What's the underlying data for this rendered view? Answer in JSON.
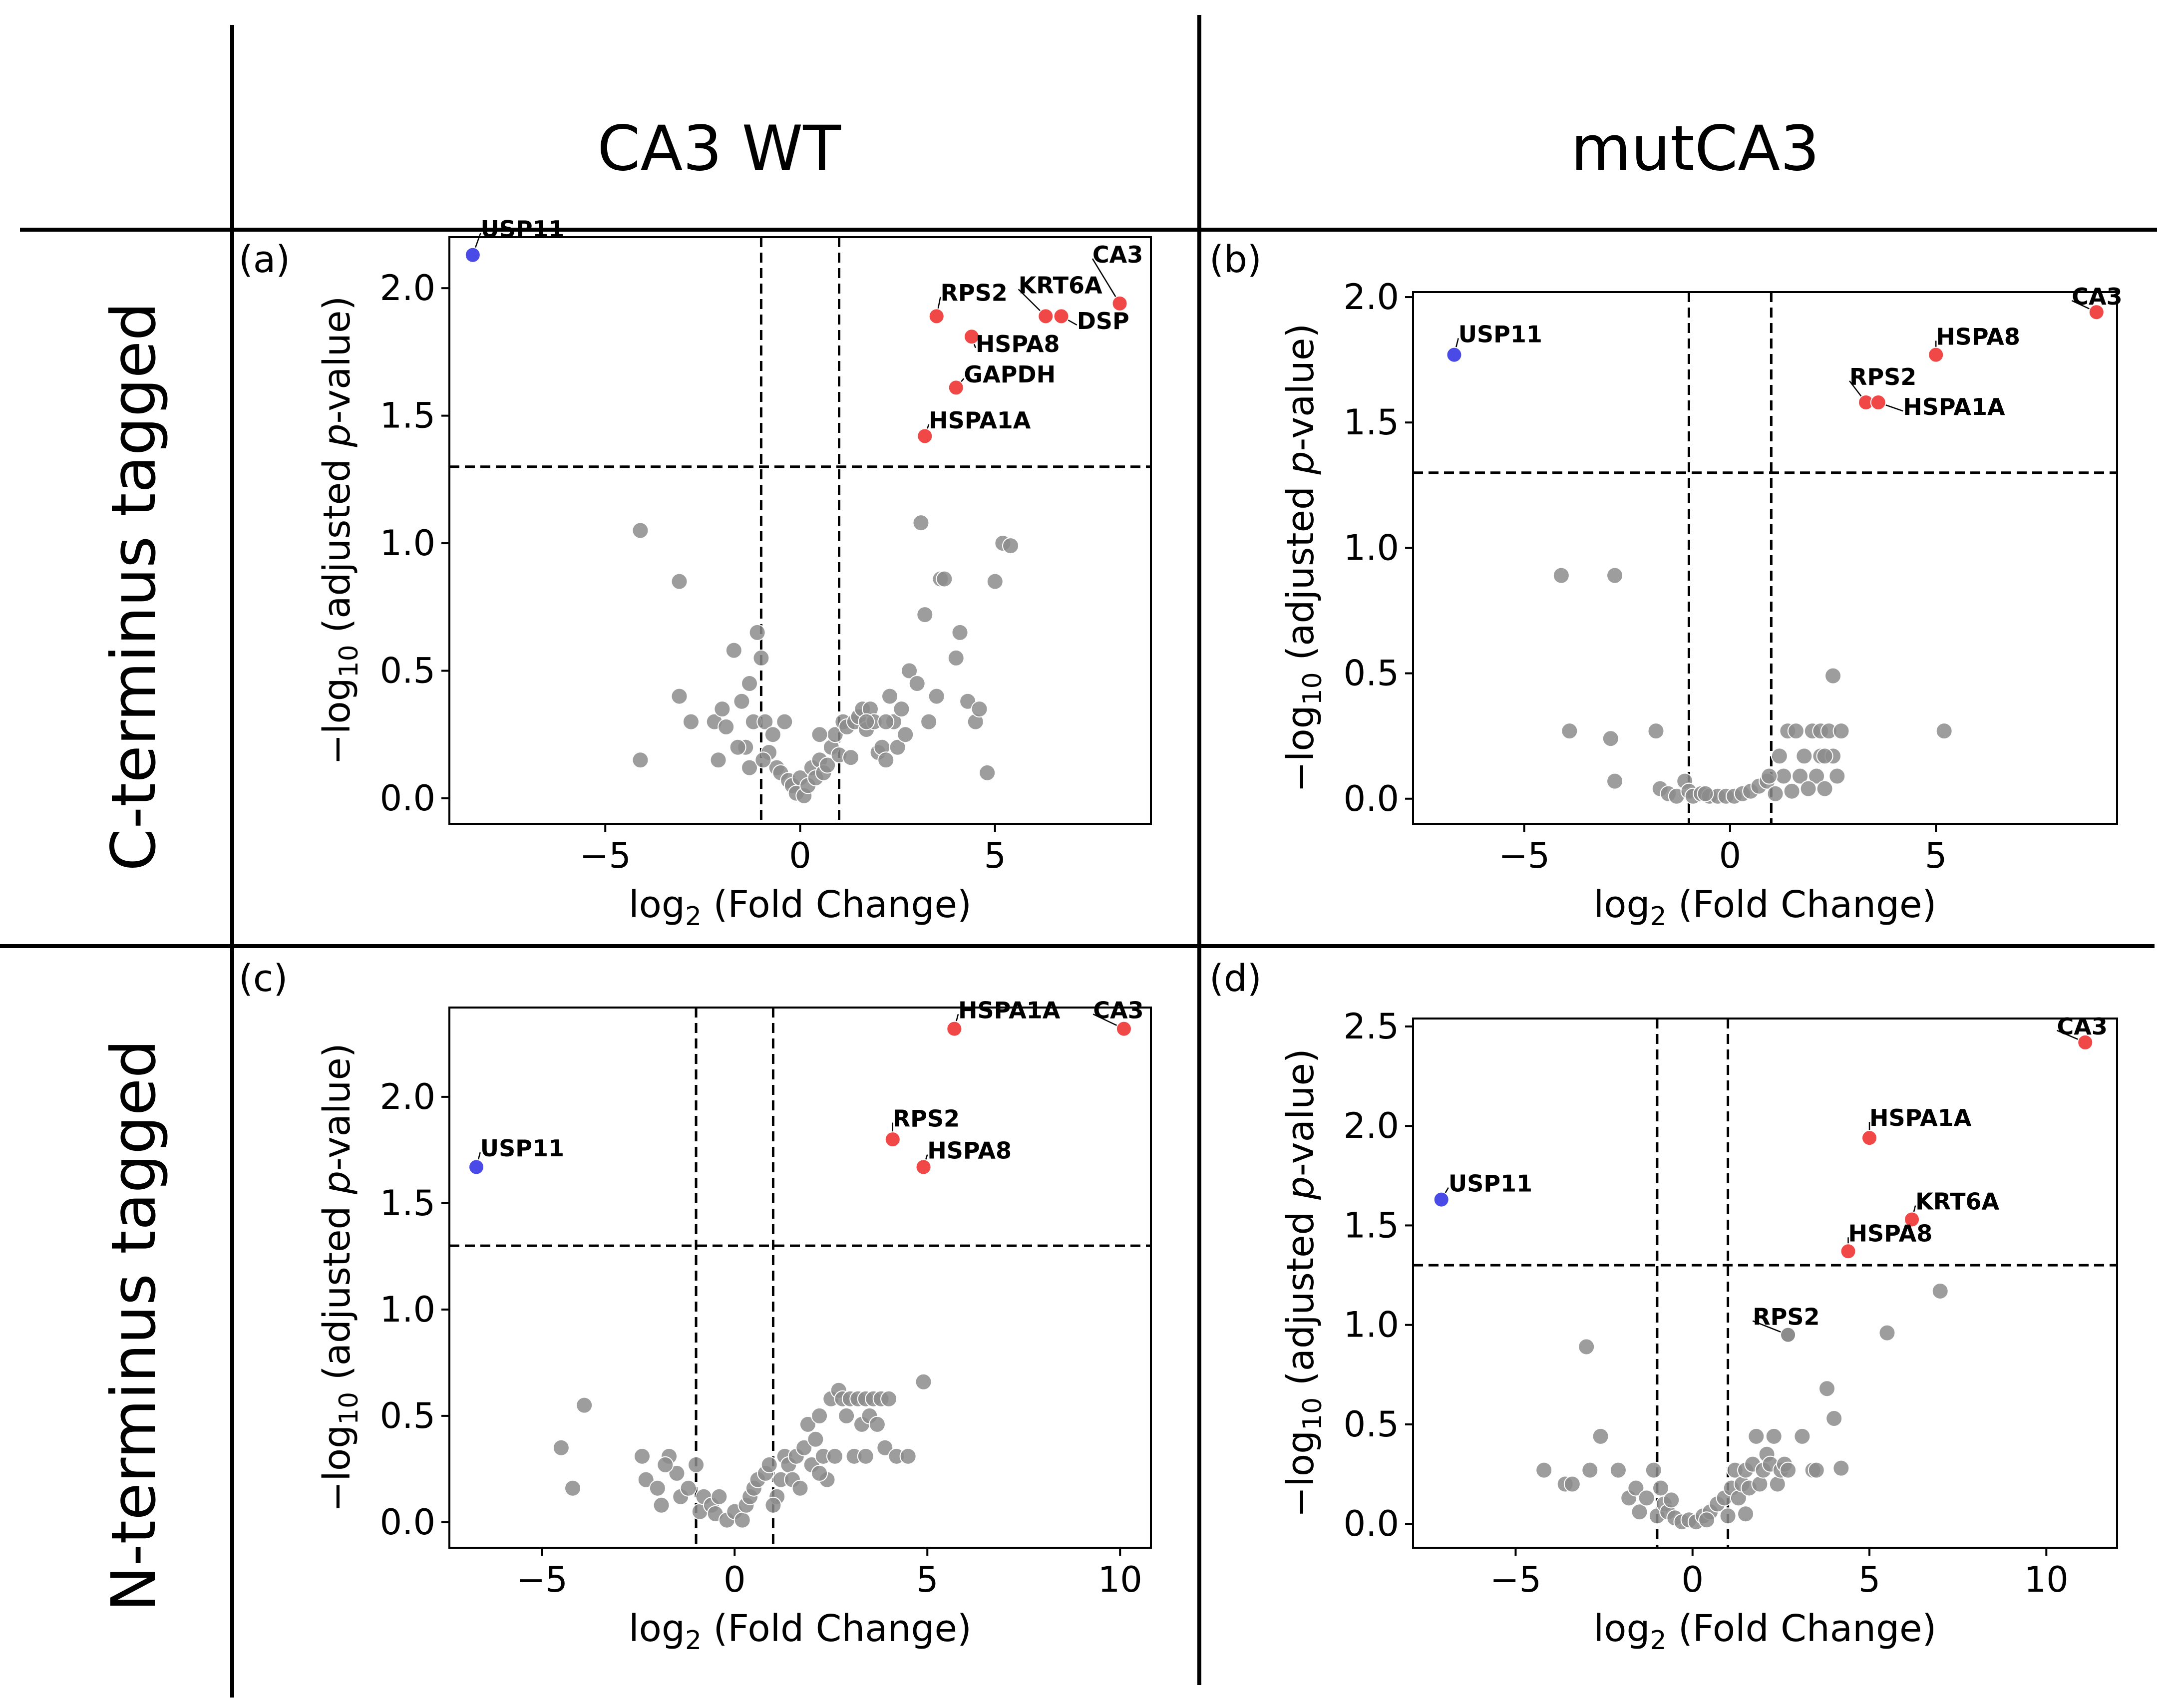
{
  "header": {
    "columns": [
      "CA3 WT",
      "mutCA3"
    ],
    "rows": [
      "C-terminus tagged",
      "N-terminus tagged"
    ]
  },
  "colors": {
    "up": "#f04747",
    "down": "#4a4ae6",
    "ns": "#8c8c8c",
    "ns_edge": "#ffffff"
  },
  "chart_data": [
    {
      "type": "scatter",
      "panel": "(a)",
      "xlabel_main": "log",
      "xlabel_sub": "2",
      "xlabel_rest": " (Fold Change)",
      "ylabel_pre": "−log",
      "ylabel_sub": "10",
      "ylabel_mid": " (adjusted ",
      "ylabel_italic": "p",
      "ylabel_post": "-value)",
      "xlim": [
        -9,
        9
      ],
      "ylim": [
        -0.1,
        2.2
      ],
      "xticks": [
        -5,
        0,
        5
      ],
      "xtick_labels": [
        "−5",
        "0",
        "5"
      ],
      "yticks": [
        0,
        0.5,
        1,
        1.5,
        2
      ],
      "ytick_labels": [
        "0.0",
        "0.5",
        "1.0",
        "1.5",
        "2.0"
      ],
      "thresholds": {
        "x": [
          -1,
          1
        ],
        "y": 1.3
      },
      "highlight": [
        {
          "label": "USP11",
          "x": -8.4,
          "y": 2.13,
          "group": "down",
          "lx": -8.2,
          "ly": 2.2
        },
        {
          "label": "CA3",
          "x": 8.2,
          "y": 1.94,
          "group": "up",
          "lx": 7.5,
          "ly": 2.1
        },
        {
          "label": "RPS2",
          "x": 3.5,
          "y": 1.89,
          "group": "up",
          "lx": 3.6,
          "ly": 1.95
        },
        {
          "label": "KRT6A",
          "x": 6.3,
          "y": 1.89,
          "group": "up",
          "lx": 5.6,
          "ly": 1.98
        },
        {
          "label": "DSP",
          "x": 6.7,
          "y": 1.89,
          "group": "up",
          "lx": 7.1,
          "ly": 1.84
        },
        {
          "label": "HSPA8",
          "x": 4.4,
          "y": 1.81,
          "group": "up",
          "lx": 4.5,
          "ly": 1.75
        },
        {
          "label": "GAPDH",
          "x": 4.0,
          "y": 1.61,
          "group": "up",
          "lx": 4.2,
          "ly": 1.63
        },
        {
          "label": "HSPA1A",
          "x": 3.2,
          "y": 1.42,
          "group": "up",
          "lx": 3.3,
          "ly": 1.45
        }
      ],
      "points": [
        [
          -4.1,
          1.05
        ],
        [
          -4.1,
          0.15
        ],
        [
          -3.1,
          0.85
        ],
        [
          -3.1,
          0.4
        ],
        [
          -2.8,
          0.3
        ],
        [
          -2.2,
          0.3
        ],
        [
          -2.1,
          0.15
        ],
        [
          -2.0,
          0.35
        ],
        [
          -1.7,
          0.58
        ],
        [
          -1.5,
          0.38
        ],
        [
          -1.4,
          0.2
        ],
        [
          -1.3,
          0.45
        ],
        [
          -1.2,
          0.3
        ],
        [
          -1.1,
          0.65
        ],
        [
          -1.3,
          0.12
        ],
        [
          -1.0,
          0.55
        ],
        [
          -0.9,
          0.3
        ],
        [
          -0.8,
          0.18
        ],
        [
          -0.7,
          0.25
        ],
        [
          -0.6,
          0.12
        ],
        [
          -0.5,
          0.1
        ],
        [
          -0.4,
          0.3
        ],
        [
          -0.3,
          0.07
        ],
        [
          -0.2,
          0.05
        ],
        [
          -0.1,
          0.02
        ],
        [
          0.0,
          0.08
        ],
        [
          0.1,
          0.01
        ],
        [
          0.2,
          0.05
        ],
        [
          0.3,
          0.12
        ],
        [
          0.4,
          0.08
        ],
        [
          0.5,
          0.15
        ],
        [
          0.6,
          0.1
        ],
        [
          0.7,
          0.13
        ],
        [
          0.8,
          0.2
        ],
        [
          0.9,
          0.25
        ],
        [
          1.0,
          0.17
        ],
        [
          1.1,
          0.3
        ],
        [
          1.2,
          0.28
        ],
        [
          1.3,
          0.16
        ],
        [
          1.4,
          0.3
        ],
        [
          1.5,
          0.32
        ],
        [
          1.6,
          0.35
        ],
        [
          1.7,
          0.27
        ],
        [
          1.8,
          0.35
        ],
        [
          1.9,
          0.3
        ],
        [
          2.0,
          0.18
        ],
        [
          2.1,
          0.2
        ],
        [
          2.2,
          0.15
        ],
        [
          2.3,
          0.4
        ],
        [
          2.4,
          0.3
        ],
        [
          2.5,
          0.2
        ],
        [
          2.6,
          0.35
        ],
        [
          2.7,
          0.25
        ],
        [
          2.8,
          0.5
        ],
        [
          3.0,
          0.45
        ],
        [
          3.1,
          1.08
        ],
        [
          3.2,
          0.72
        ],
        [
          3.3,
          0.3
        ],
        [
          3.5,
          0.4
        ],
        [
          3.6,
          0.86
        ],
        [
          3.7,
          0.86
        ],
        [
          4.0,
          0.55
        ],
        [
          4.1,
          0.65
        ],
        [
          4.3,
          0.38
        ],
        [
          4.5,
          0.3
        ],
        [
          4.6,
          0.35
        ],
        [
          4.8,
          0.1
        ],
        [
          5.0,
          0.85
        ],
        [
          5.2,
          1.0
        ],
        [
          5.4,
          0.99
        ],
        [
          -1.6,
          0.2
        ],
        [
          -1.9,
          0.28
        ],
        [
          -0.95,
          0.15
        ],
        [
          1.7,
          0.3
        ],
        [
          2.2,
          0.3
        ],
        [
          0.5,
          0.25
        ]
      ]
    },
    {
      "type": "scatter",
      "panel": "(b)",
      "xlabel_main": "log",
      "xlabel_sub": "2",
      "xlabel_rest": " (Fold Change)",
      "ylabel_pre": "−log",
      "ylabel_sub": "10",
      "ylabel_mid": " (adjusted ",
      "ylabel_italic": "p",
      "ylabel_post": "-value)",
      "xlim": [
        -7.7,
        9.4
      ],
      "ylim": [
        -0.1,
        2.02
      ],
      "xticks": [
        -5,
        0,
        5
      ],
      "xtick_labels": [
        "−5",
        "0",
        "5"
      ],
      "yticks": [
        0,
        0.5,
        1,
        1.5,
        2
      ],
      "ytick_labels": [
        "0.0",
        "0.5",
        "1.0",
        "1.5",
        "2.0"
      ],
      "thresholds": {
        "x": [
          -1,
          1
        ],
        "y": 1.3
      },
      "highlight": [
        {
          "label": "USP11",
          "x": -6.7,
          "y": 1.77,
          "group": "down",
          "lx": -6.6,
          "ly": 1.82
        },
        {
          "label": "CA3",
          "x": 8.9,
          "y": 1.94,
          "group": "up",
          "lx": 8.3,
          "ly": 1.97
        },
        {
          "label": "HSPA8",
          "x": 5.0,
          "y": 1.77,
          "group": "up",
          "lx": 5.0,
          "ly": 1.81
        },
        {
          "label": "RPS2",
          "x": 3.3,
          "y": 1.58,
          "group": "up",
          "lx": 2.9,
          "ly": 1.65
        },
        {
          "label": "HSPA1A",
          "x": 3.6,
          "y": 1.58,
          "group": "up",
          "lx": 4.2,
          "ly": 1.53
        }
      ],
      "points": [
        [
          -4.1,
          0.89
        ],
        [
          -3.9,
          0.27
        ],
        [
          -2.9,
          0.24
        ],
        [
          -2.8,
          0.89
        ],
        [
          -2.8,
          0.07
        ],
        [
          -1.8,
          0.27
        ],
        [
          -1.7,
          0.04
        ],
        [
          -1.5,
          0.02
        ],
        [
          -1.3,
          0.01
        ],
        [
          -1.1,
          0.07
        ],
        [
          -1.0,
          0.03
        ],
        [
          -0.9,
          0.01
        ],
        [
          -0.7,
          0.02
        ],
        [
          -0.5,
          0.01
        ],
        [
          -0.3,
          0.01
        ],
        [
          -0.1,
          0.01
        ],
        [
          0.1,
          0.01
        ],
        [
          0.3,
          0.02
        ],
        [
          0.5,
          0.03
        ],
        [
          0.7,
          0.05
        ],
        [
          0.9,
          0.07
        ],
        [
          1.1,
          0.02
        ],
        [
          1.2,
          0.17
        ],
        [
          1.4,
          0.27
        ],
        [
          1.5,
          0.03
        ],
        [
          1.6,
          0.27
        ],
        [
          1.7,
          0.09
        ],
        [
          1.8,
          0.17
        ],
        [
          2.0,
          0.27
        ],
        [
          2.1,
          0.09
        ],
        [
          2.2,
          0.27
        ],
        [
          2.2,
          0.17
        ],
        [
          2.3,
          0.04
        ],
        [
          2.4,
          0.27
        ],
        [
          2.5,
          0.17
        ],
        [
          2.5,
          0.49
        ],
        [
          2.6,
          0.09
        ],
        [
          2.7,
          0.27
        ],
        [
          5.2,
          0.27
        ],
        [
          1.3,
          0.09
        ],
        [
          1.9,
          0.04
        ],
        [
          2.3,
          0.17
        ],
        [
          0.95,
          0.09
        ],
        [
          -0.6,
          0.02
        ]
      ]
    },
    {
      "type": "scatter",
      "panel": "(c)",
      "xlabel_main": "log",
      "xlabel_sub": "2",
      "xlabel_rest": " (Fold Change)",
      "ylabel_pre": "−log",
      "ylabel_sub": "10",
      "ylabel_mid": " (adjusted ",
      "ylabel_italic": "p",
      "ylabel_post": "-value)",
      "xlim": [
        -7.4,
        10.8
      ],
      "ylim": [
        -0.12,
        2.42
      ],
      "xticks": [
        -5,
        0,
        5,
        10
      ],
      "xtick_labels": [
        "−5",
        "0",
        "5",
        "10"
      ],
      "yticks": [
        0,
        0.5,
        1,
        1.5,
        2
      ],
      "ytick_labels": [
        "0.0",
        "0.5",
        "1.0",
        "1.5",
        "2.0"
      ],
      "thresholds": {
        "x": [
          -1,
          1
        ],
        "y": 1.3
      },
      "highlight": [
        {
          "label": "USP11",
          "x": -6.7,
          "y": 1.67,
          "group": "down",
          "lx": -6.6,
          "ly": 1.72
        },
        {
          "label": "HSPA1A",
          "x": 5.7,
          "y": 2.32,
          "group": "up",
          "lx": 5.8,
          "ly": 2.37
        },
        {
          "label": "CA3",
          "x": 10.1,
          "y": 2.32,
          "group": "up",
          "lx": 9.3,
          "ly": 2.37
        },
        {
          "label": "RPS2",
          "x": 4.1,
          "y": 1.8,
          "group": "up",
          "lx": 4.1,
          "ly": 1.86
        },
        {
          "label": "HSPA8",
          "x": 4.9,
          "y": 1.67,
          "group": "up",
          "lx": 5.0,
          "ly": 1.71
        }
      ],
      "points": [
        [
          -4.5,
          0.35
        ],
        [
          -4.2,
          0.16
        ],
        [
          -3.9,
          0.55
        ],
        [
          -2.4,
          0.31
        ],
        [
          -2.3,
          0.2
        ],
        [
          -2.0,
          0.16
        ],
        [
          -1.9,
          0.08
        ],
        [
          -1.7,
          0.31
        ],
        [
          -1.5,
          0.23
        ],
        [
          -1.4,
          0.12
        ],
        [
          -1.2,
          0.16
        ],
        [
          -1.0,
          0.27
        ],
        [
          -0.9,
          0.05
        ],
        [
          -0.8,
          0.12
        ],
        [
          -0.6,
          0.08
        ],
        [
          -0.5,
          0.04
        ],
        [
          -0.4,
          0.12
        ],
        [
          -0.2,
          0.01
        ],
        [
          0.0,
          0.05
        ],
        [
          0.2,
          0.01
        ],
        [
          0.3,
          0.08
        ],
        [
          0.4,
          0.12
        ],
        [
          0.5,
          0.16
        ],
        [
          0.6,
          0.2
        ],
        [
          0.8,
          0.23
        ],
        [
          0.9,
          0.27
        ],
        [
          1.1,
          0.12
        ],
        [
          1.2,
          0.2
        ],
        [
          1.3,
          0.31
        ],
        [
          1.4,
          0.27
        ],
        [
          1.5,
          0.2
        ],
        [
          1.6,
          0.31
        ],
        [
          1.7,
          0.16
        ],
        [
          1.8,
          0.35
        ],
        [
          1.9,
          0.46
        ],
        [
          2.0,
          0.27
        ],
        [
          2.1,
          0.39
        ],
        [
          2.2,
          0.5
        ],
        [
          2.3,
          0.31
        ],
        [
          2.4,
          0.2
        ],
        [
          2.5,
          0.58
        ],
        [
          2.6,
          0.31
        ],
        [
          2.7,
          0.62
        ],
        [
          2.8,
          0.58
        ],
        [
          2.9,
          0.5
        ],
        [
          3.0,
          0.58
        ],
        [
          3.1,
          0.31
        ],
        [
          3.2,
          0.58
        ],
        [
          3.3,
          0.46
        ],
        [
          3.4,
          0.58
        ],
        [
          3.5,
          0.5
        ],
        [
          3.6,
          0.58
        ],
        [
          3.7,
          0.46
        ],
        [
          3.8,
          0.58
        ],
        [
          3.9,
          0.35
        ],
        [
          4.0,
          0.58
        ],
        [
          4.2,
          0.31
        ],
        [
          4.5,
          0.31
        ],
        [
          4.9,
          0.66
        ],
        [
          2.2,
          0.23
        ],
        [
          1.0,
          0.08
        ],
        [
          -1.8,
          0.27
        ],
        [
          3.4,
          0.31
        ]
      ]
    },
    {
      "type": "scatter",
      "panel": "(d)",
      "xlabel_main": "log",
      "xlabel_sub": "2",
      "xlabel_rest": " (Fold Change)",
      "ylabel_pre": "−log",
      "ylabel_sub": "10",
      "ylabel_mid": " (adjusted ",
      "ylabel_italic": "p",
      "ylabel_post": "-value)",
      "xlim": [
        -7.9,
        12.0
      ],
      "ylim": [
        -0.12,
        2.54
      ],
      "xticks": [
        -5,
        0,
        5,
        10
      ],
      "xtick_labels": [
        "−5",
        "0",
        "5",
        "10"
      ],
      "yticks": [
        0,
        0.5,
        1,
        1.5,
        2,
        2.5
      ],
      "ytick_labels": [
        "0.0",
        "0.5",
        "1.0",
        "1.5",
        "2.0",
        "2.5"
      ],
      "thresholds": {
        "x": [
          -1,
          1
        ],
        "y": 1.3
      },
      "highlight": [
        {
          "label": "USP11",
          "x": -7.1,
          "y": 1.63,
          "group": "down",
          "lx": -6.9,
          "ly": 1.67
        },
        {
          "label": "CA3",
          "x": 11.1,
          "y": 2.42,
          "group": "up",
          "lx": 10.3,
          "ly": 2.46
        },
        {
          "label": "HSPA1A",
          "x": 5.0,
          "y": 1.94,
          "group": "up",
          "lx": 5.0,
          "ly": 2.0
        },
        {
          "label": "KRT6A",
          "x": 6.2,
          "y": 1.53,
          "group": "up",
          "lx": 6.3,
          "ly": 1.58
        },
        {
          "label": "HSPA8",
          "x": 4.4,
          "y": 1.37,
          "group": "up",
          "lx": 4.4,
          "ly": 1.42
        },
        {
          "label": "RPS2",
          "x": 2.7,
          "y": 0.95,
          "group": "ns",
          "lx": 1.7,
          "ly": 1.0
        }
      ],
      "points": [
        [
          -4.2,
          0.27
        ],
        [
          -3.6,
          0.2
        ],
        [
          -3.4,
          0.2
        ],
        [
          -3.0,
          0.89
        ],
        [
          -2.9,
          0.27
        ],
        [
          -2.6,
          0.44
        ],
        [
          -2.1,
          0.27
        ],
        [
          -1.8,
          0.13
        ],
        [
          -1.6,
          0.18
        ],
        [
          -1.5,
          0.06
        ],
        [
          -1.3,
          0.13
        ],
        [
          -1.1,
          0.27
        ],
        [
          -1.0,
          0.04
        ],
        [
          -0.9,
          0.18
        ],
        [
          -0.8,
          0.1
        ],
        [
          -0.7,
          0.06
        ],
        [
          -0.5,
          0.03
        ],
        [
          -0.3,
          0.01
        ],
        [
          -0.1,
          0.02
        ],
        [
          0.1,
          0.01
        ],
        [
          0.3,
          0.04
        ],
        [
          0.5,
          0.06
        ],
        [
          0.7,
          0.1
        ],
        [
          0.9,
          0.13
        ],
        [
          1.0,
          0.04
        ],
        [
          1.1,
          0.18
        ],
        [
          1.2,
          0.27
        ],
        [
          1.3,
          0.13
        ],
        [
          1.4,
          0.2
        ],
        [
          1.5,
          0.27
        ],
        [
          1.6,
          0.18
        ],
        [
          1.7,
          0.3
        ],
        [
          1.8,
          0.44
        ],
        [
          1.9,
          0.2
        ],
        [
          2.0,
          0.27
        ],
        [
          2.1,
          0.35
        ],
        [
          2.2,
          0.3
        ],
        [
          2.3,
          0.44
        ],
        [
          2.4,
          0.2
        ],
        [
          2.5,
          0.27
        ],
        [
          2.6,
          0.3
        ],
        [
          2.7,
          0.27
        ],
        [
          3.1,
          0.44
        ],
        [
          3.4,
          0.27
        ],
        [
          3.5,
          0.27
        ],
        [
          3.8,
          0.68
        ],
        [
          4.0,
          0.53
        ],
        [
          4.2,
          0.28
        ],
        [
          5.5,
          0.96
        ],
        [
          7.0,
          1.17
        ],
        [
          1.5,
          0.05
        ],
        [
          0.4,
          0.02
        ],
        [
          -0.6,
          0.12
        ]
      ]
    }
  ]
}
